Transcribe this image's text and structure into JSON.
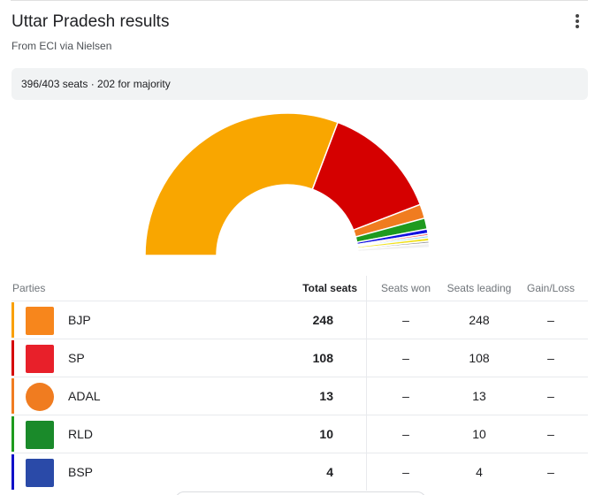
{
  "header": {
    "title": "Uttar Pradesh results",
    "subtitle": "From ECI via Nielsen",
    "more_icon": "more-vert-icon"
  },
  "banner": {
    "text": "396/403 seats · 202 for majority"
  },
  "table": {
    "headers": [
      "Parties",
      "Total seats",
      "Seats won",
      "Seats leading",
      "Gain/Loss"
    ],
    "rows": [
      {
        "party": "BJP",
        "total": "248",
        "won": "–",
        "leading": "248",
        "gain": "–",
        "color": "#f9a000",
        "logo_color": "#f7861c"
      },
      {
        "party": "SP",
        "total": "108",
        "won": "–",
        "leading": "108",
        "gain": "–",
        "color": "#d50000",
        "logo_color": "#e8202a"
      },
      {
        "party": "ADAL",
        "total": "13",
        "won": "–",
        "leading": "13",
        "gain": "–",
        "color": "#f07c20",
        "logo_color": "#f07c20"
      },
      {
        "party": "RLD",
        "total": "10",
        "won": "–",
        "leading": "10",
        "gain": "–",
        "color": "#1e9a1e",
        "logo_color": "#1a8a2a"
      },
      {
        "party": "BSP",
        "total": "4",
        "won": "–",
        "leading": "4",
        "gain": "–",
        "color": "#1010c8",
        "logo_color": "#2a4aa8"
      }
    ]
  },
  "chart_data": {
    "type": "pie",
    "shape": "half-donut",
    "total": 403,
    "segments": [
      {
        "label": "BJP",
        "value": 248,
        "color": "#f9a600"
      },
      {
        "label": "SP",
        "value": 108,
        "color": "#d50000"
      },
      {
        "label": "ADAL",
        "value": 13,
        "color": "#f07c20"
      },
      {
        "label": "RLD",
        "value": 10,
        "color": "#1e9a1e"
      },
      {
        "label": "BSP",
        "value": 4,
        "color": "#1010e0"
      },
      {
        "value": 2,
        "color": "#f06060"
      },
      {
        "value": 2,
        "color": "#80d0f0"
      },
      {
        "value": 3,
        "color": "#f0e020"
      },
      {
        "value": 2,
        "color": "#909090"
      },
      {
        "value": 4,
        "color": "#f0f0f0"
      },
      {
        "value": 7,
        "color": "#ffffff"
      }
    ]
  }
}
